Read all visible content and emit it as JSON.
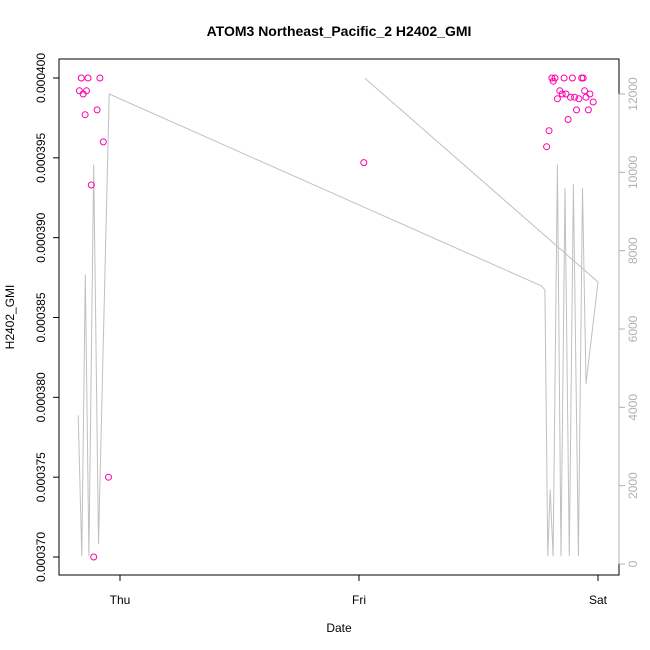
{
  "chart_data": {
    "type": "scatter",
    "title": "ATOM3 Northeast_Pacific_2 H2402_GMI",
    "xlabel": "Date",
    "ylabel": "H2402_GMI",
    "x_ticks": [
      "Thu",
      "Fri",
      "Sat"
    ],
    "ylim": [
      0.000369,
      0.0004025
    ],
    "y_ticks": [
      "0.000370",
      "0.000375",
      "0.000380",
      "0.000385",
      "0.000390",
      "0.000395",
      "0.000400"
    ],
    "y2lim": [
      -300,
      12600
    ],
    "y2_ticks": [
      "0",
      "2000",
      "4000",
      "6000",
      "8000",
      "10000",
      "12000"
    ],
    "colors": {
      "points": "#ff00aa",
      "line": "#c0c0c0",
      "right_axis": "#b0b0b0"
    },
    "series": [
      {
        "values": [
          {
            "x": -0.17,
            "y": 0.0003992
          },
          {
            "x": -0.162,
            "y": 0.0004
          },
          {
            "x": -0.154,
            "y": 0.000399
          },
          {
            "x": -0.146,
            "y": 0.0003977
          },
          {
            "x": -0.14,
            "y": 0.0003992
          },
          {
            "x": -0.134,
            "y": 0.0004
          },
          {
            "x": -0.12,
            "y": 0.0003933
          },
          {
            "x": -0.11,
            "y": 0.00037
          },
          {
            "x": -0.096,
            "y": 0.000398
          },
          {
            "x": -0.084,
            "y": 0.0004
          },
          {
            "x": -0.07,
            "y": 0.000396
          },
          {
            "x": -0.048,
            "y": 0.000375
          },
          {
            "x": 1.02,
            "y": 0.0003947
          },
          {
            "x": 1.785,
            "y": 0.0003957
          },
          {
            "x": 1.795,
            "y": 0.0003967
          },
          {
            "x": 1.807,
            "y": 0.0004
          },
          {
            "x": 1.813,
            "y": 0.0003998
          },
          {
            "x": 1.82,
            "y": 0.0004
          },
          {
            "x": 1.83,
            "y": 0.0003987
          },
          {
            "x": 1.84,
            "y": 0.0003992
          },
          {
            "x": 1.85,
            "y": 0.000399
          },
          {
            "x": 1.858,
            "y": 0.0004
          },
          {
            "x": 1.866,
            "y": 0.000399
          },
          {
            "x": 1.875,
            "y": 0.0003974
          },
          {
            "x": 1.885,
            "y": 0.0003988
          },
          {
            "x": 1.893,
            "y": 0.0004
          },
          {
            "x": 1.902,
            "y": 0.0003988
          },
          {
            "x": 1.91,
            "y": 0.000398
          },
          {
            "x": 1.92,
            "y": 0.0003987
          },
          {
            "x": 1.932,
            "y": 0.0004
          },
          {
            "x": 1.938,
            "y": 0.0004
          },
          {
            "x": 1.944,
            "y": 0.0003992
          },
          {
            "x": 1.95,
            "y": 0.0003988
          },
          {
            "x": 1.96,
            "y": 0.000398
          },
          {
            "x": 1.966,
            "y": 0.000399
          },
          {
            "x": 1.98,
            "y": 0.0003985
          }
        ]
      },
      {
        "axis": "right",
        "values": [
          {
            "x": -0.175,
            "y": 3800
          },
          {
            "x": -0.16,
            "y": 200
          },
          {
            "x": -0.145,
            "y": 7400
          },
          {
            "x": -0.13,
            "y": 200
          },
          {
            "x": -0.11,
            "y": 10200
          },
          {
            "x": -0.09,
            "y": 500
          },
          {
            "x": -0.045,
            "y": 12000
          },
          {
            "x": 1.763,
            "y": 7100
          },
          {
            "x": 1.778,
            "y": 7000
          },
          {
            "x": 1.79,
            "y": 200
          },
          {
            "x": 1.8,
            "y": 1900
          },
          {
            "x": 1.812,
            "y": 200
          },
          {
            "x": 1.83,
            "y": 10200
          },
          {
            "x": 1.845,
            "y": 200
          },
          {
            "x": 1.862,
            "y": 9600
          },
          {
            "x": 1.88,
            "y": 200
          },
          {
            "x": 1.897,
            "y": 9700
          },
          {
            "x": 1.918,
            "y": 200
          },
          {
            "x": 1.935,
            "y": 9600
          },
          {
            "x": 1.95,
            "y": 4600
          },
          {
            "x": 2.0,
            "y": 7200
          },
          {
            "x": 1.025,
            "y": 12400
          }
        ]
      }
    ]
  }
}
